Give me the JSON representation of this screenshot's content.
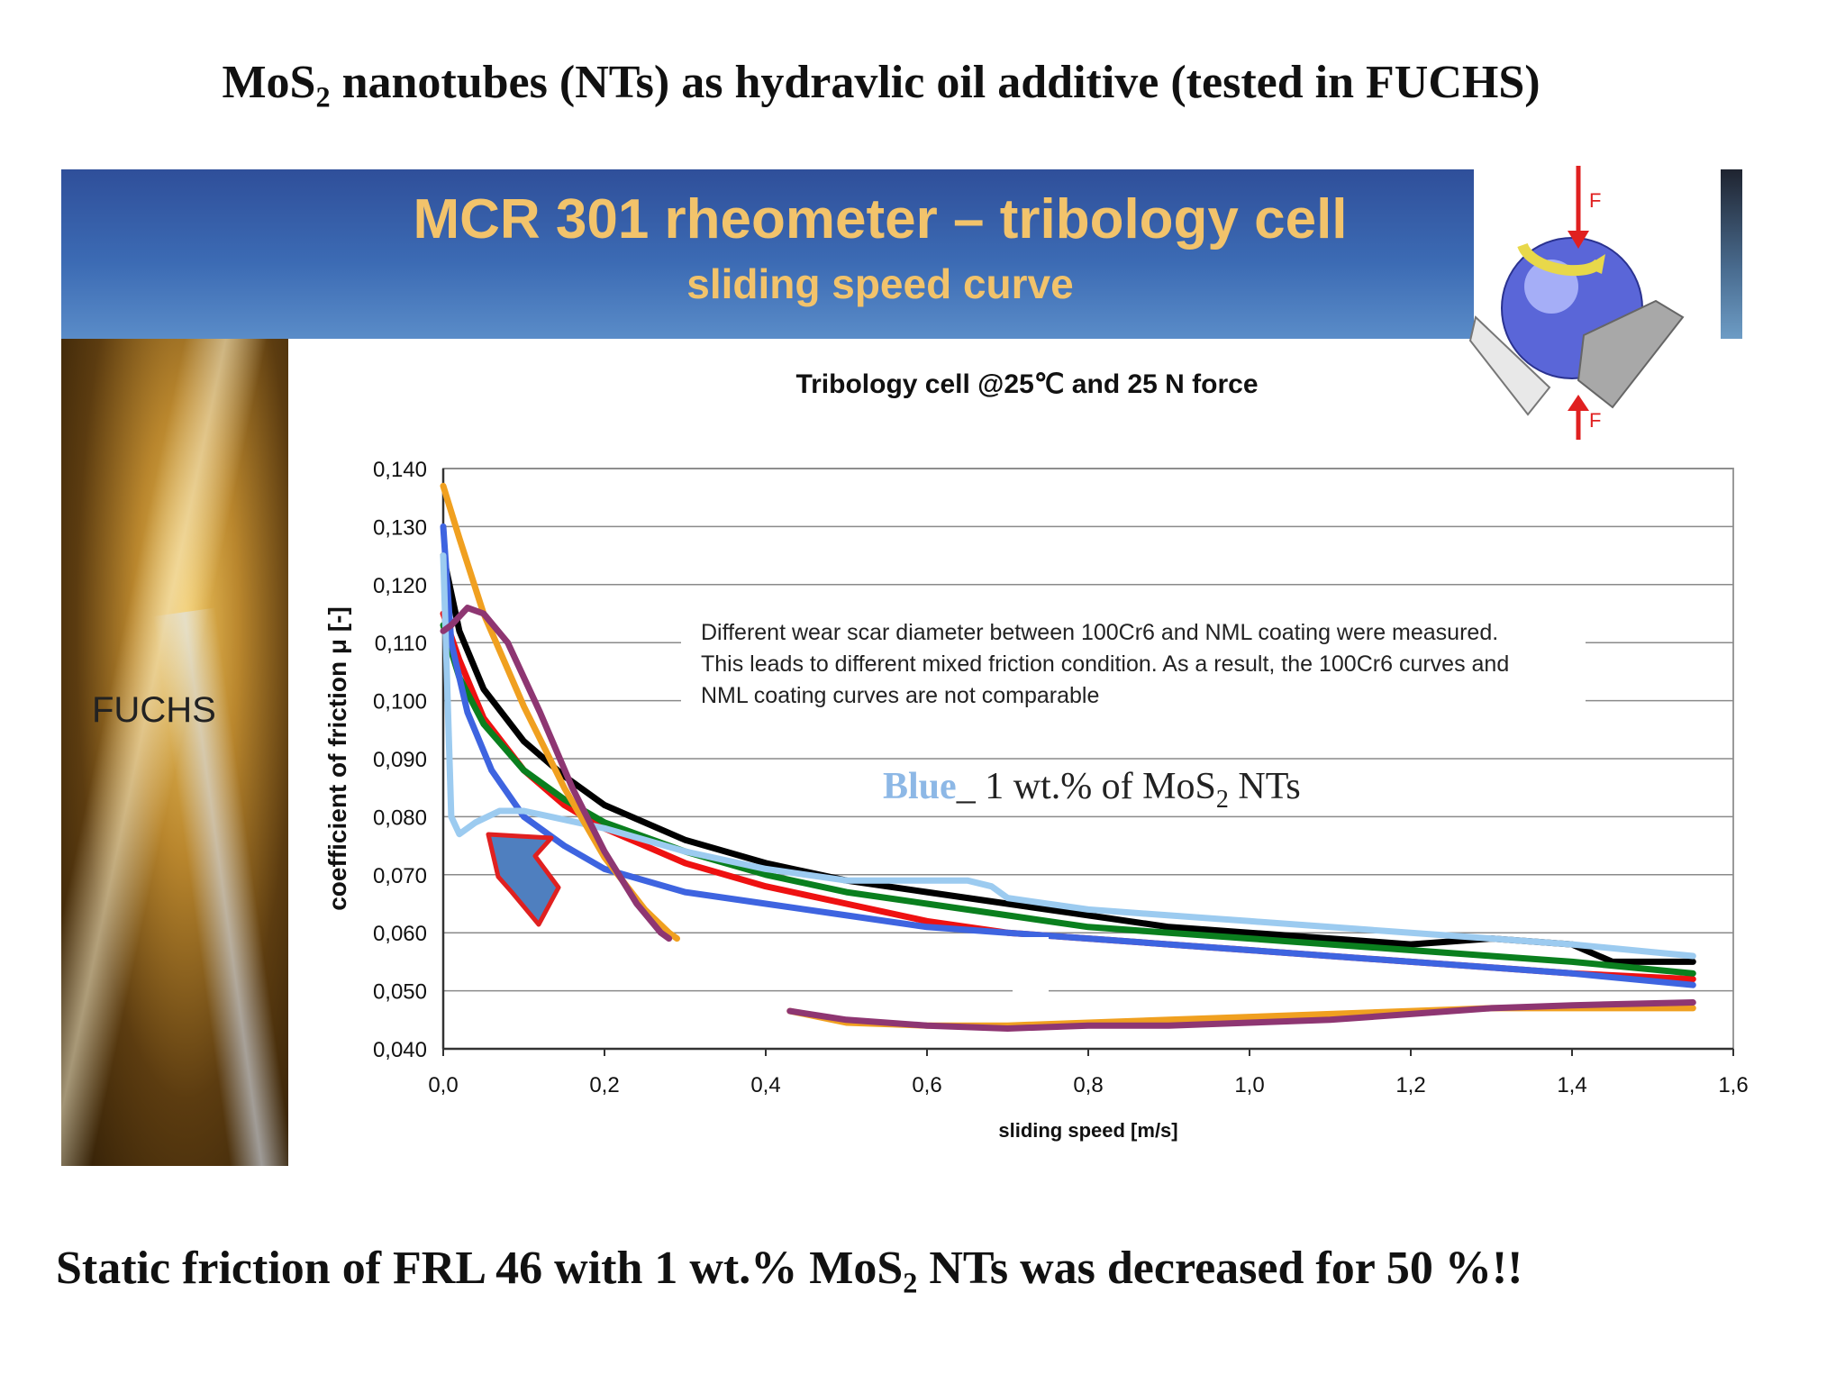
{
  "slide": {
    "title_prefix": "MoS",
    "title_sub": "2",
    "title_suffix": " nanotubes (NTs) as hydravlic oil additive (tested in FUCHS)",
    "footer_prefix": "Static friction of FRL 46 with 1 wt.% MoS",
    "footer_sub": "2",
    "footer_suffix": " NTs was decreased for 50 %!!",
    "side_label": "FUCHS"
  },
  "banner": {
    "title": "MCR 301 rheometer – tribology cell",
    "subtitle": "sliding speed curve",
    "diagram_label_top": "F",
    "diagram_label_bottom": "F"
  },
  "chart_data": {
    "type": "line",
    "title": "Tribology cell  @25℃ and 25 N force",
    "xlabel": "sliding speed [m/s]",
    "ylabel": "coefficient of friction μ [-]",
    "xlim": [
      0.0,
      1.6
    ],
    "ylim": [
      0.04,
      0.14
    ],
    "x_ticks": [
      "0,0",
      "0,2",
      "0,4",
      "0,6",
      "0,8",
      "1,0",
      "1,2",
      "1,4",
      "1,6"
    ],
    "y_ticks": [
      "0,040",
      "0,050",
      "0,060",
      "0,070",
      "0,080",
      "0,090",
      "0,100",
      "0,110",
      "0,120",
      "0,130",
      "0,140"
    ],
    "grid": "horizontal",
    "note_lines": [
      "Different wear scar diameter between 100Cr6 and NML coating were measured.",
      "This leads to different mixed friction condition. As a result, the 100Cr6 curves and",
      "NML coating curves are not comparable"
    ],
    "annotation": {
      "blue_word": "Blue",
      "text_before_sub": "_ 1 wt.% of MoS",
      "sub": "2",
      "text_after_sub": " NTs"
    },
    "series": [
      {
        "color": "#000000",
        "x": [
          0.0,
          0.02,
          0.05,
          0.1,
          0.15,
          0.2,
          0.3,
          0.4,
          0.5,
          0.6,
          0.7,
          0.8,
          0.9,
          1.0,
          1.1,
          1.2,
          1.3,
          1.4,
          1.45,
          1.55
        ],
        "y": [
          0.125,
          0.112,
          0.102,
          0.093,
          0.087,
          0.082,
          0.076,
          0.072,
          0.069,
          0.067,
          0.065,
          0.063,
          0.061,
          0.06,
          0.059,
          0.058,
          0.059,
          0.058,
          0.055,
          0.055
        ]
      },
      {
        "color": "#ee1111",
        "x": [
          0.0,
          0.02,
          0.05,
          0.1,
          0.15,
          0.2,
          0.3,
          0.4,
          0.5,
          0.6,
          0.7,
          0.8,
          0.9,
          1.0,
          1.1,
          1.2,
          1.3,
          1.4,
          1.55
        ],
        "y": [
          0.115,
          0.107,
          0.097,
          0.088,
          0.082,
          0.078,
          0.072,
          0.068,
          0.065,
          0.062,
          0.06,
          0.059,
          0.058,
          0.057,
          0.056,
          0.055,
          0.054,
          0.053,
          0.052
        ]
      },
      {
        "color": "#0a7f1e",
        "x": [
          0.0,
          0.02,
          0.05,
          0.1,
          0.15,
          0.2,
          0.3,
          0.4,
          0.5,
          0.6,
          0.7,
          0.8,
          0.9,
          1.0,
          1.1,
          1.2,
          1.3,
          1.4,
          1.55
        ],
        "y": [
          0.113,
          0.104,
          0.096,
          0.088,
          0.083,
          0.079,
          0.074,
          0.07,
          0.067,
          0.065,
          0.063,
          0.061,
          0.06,
          0.059,
          0.058,
          0.057,
          0.056,
          0.055,
          0.053
        ]
      },
      {
        "color": "#3e64e0",
        "x": [
          0.0,
          0.01,
          0.03,
          0.06,
          0.1,
          0.15,
          0.2,
          0.3,
          0.4,
          0.5,
          0.6,
          0.7,
          0.8,
          0.9,
          1.0,
          1.1,
          1.2,
          1.3,
          1.4,
          1.55
        ],
        "y": [
          0.13,
          0.11,
          0.098,
          0.088,
          0.08,
          0.075,
          0.071,
          0.067,
          0.065,
          0.063,
          0.061,
          0.06,
          0.059,
          0.058,
          0.057,
          0.056,
          0.055,
          0.054,
          0.053,
          0.051
        ]
      },
      {
        "color": "#9ccbf0",
        "x": [
          0.0,
          0.01,
          0.02,
          0.04,
          0.07,
          0.1,
          0.2,
          0.3,
          0.4,
          0.5,
          0.55,
          0.65,
          0.68,
          0.7,
          0.8,
          0.9,
          1.0,
          1.1,
          1.2,
          1.3,
          1.4,
          1.55
        ],
        "y": [
          0.125,
          0.08,
          0.077,
          0.079,
          0.081,
          0.081,
          0.078,
          0.074,
          0.071,
          0.069,
          0.069,
          0.069,
          0.068,
          0.066,
          0.064,
          0.063,
          0.062,
          0.061,
          0.06,
          0.059,
          0.058,
          0.056
        ]
      },
      {
        "color": "#f0a020",
        "x": [
          0.0,
          0.02,
          0.05,
          0.1,
          0.15,
          0.2,
          0.25,
          0.28,
          0.29
        ],
        "y": [
          0.137,
          0.128,
          0.115,
          0.099,
          0.085,
          0.073,
          0.064,
          0.06,
          0.059
        ]
      },
      {
        "color": "#f0a020",
        "x": [
          0.43,
          0.5,
          0.6,
          0.7,
          0.8,
          0.9,
          1.0,
          1.1,
          1.2,
          1.3,
          1.4,
          1.55
        ],
        "y": [
          0.0465,
          0.0445,
          0.044,
          0.044,
          0.0445,
          0.045,
          0.0455,
          0.046,
          0.0465,
          0.047,
          0.047,
          0.047
        ]
      },
      {
        "color": "#8e3672",
        "x": [
          0.0,
          0.01,
          0.03,
          0.05,
          0.08,
          0.12,
          0.16,
          0.2,
          0.24,
          0.27,
          0.28
        ],
        "y": [
          0.112,
          0.113,
          0.116,
          0.115,
          0.11,
          0.098,
          0.085,
          0.074,
          0.065,
          0.06,
          0.059
        ]
      },
      {
        "color": "#8e3672",
        "x": [
          0.43,
          0.5,
          0.6,
          0.7,
          0.8,
          0.9,
          1.0,
          1.1,
          1.2,
          1.3,
          1.4,
          1.55
        ],
        "y": [
          0.0465,
          0.045,
          0.044,
          0.0435,
          0.044,
          0.044,
          0.0445,
          0.045,
          0.046,
          0.047,
          0.0475,
          0.048
        ]
      }
    ]
  }
}
